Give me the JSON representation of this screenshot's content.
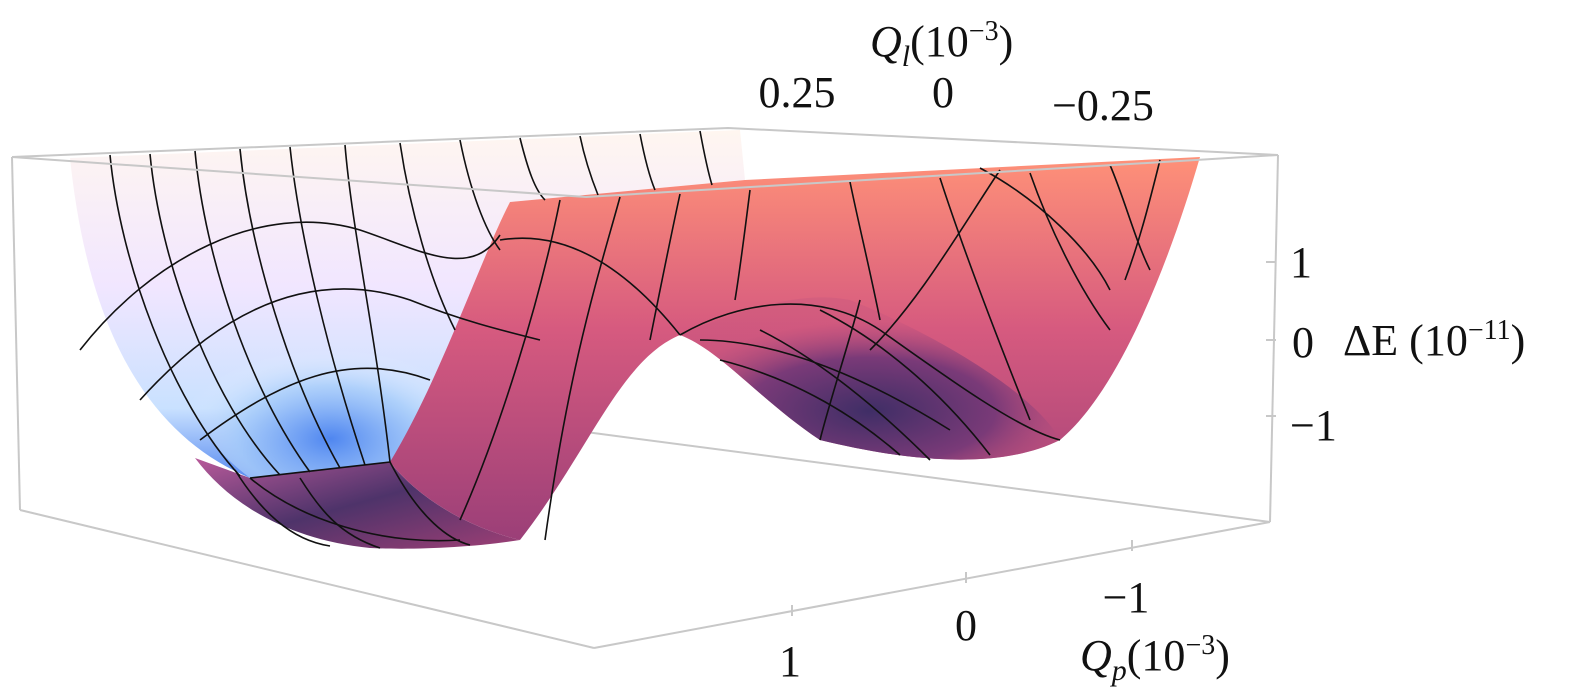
{
  "chart_data": {
    "type": "surface3d",
    "title": "",
    "description_of_surface": "double-well potential: two minima at Qp = ±1, saddle at Qp = 0, parabolic along Ql",
    "axes": {
      "x": {
        "label": "Qp",
        "unit_label": "(10",
        "unit_exp": "−3",
        "unit_close": ")",
        "ticks": [
          "1",
          "0",
          "−1"
        ],
        "tick_values": [
          1,
          0,
          -1
        ],
        "range": [
          -1.6,
          1.6
        ]
      },
      "y": {
        "label": "Ql",
        "unit_label": "(10",
        "unit_exp": "−3",
        "unit_close": ")",
        "ticks": [
          "0.25",
          "0",
          "−0.25"
        ],
        "tick_values": [
          0.25,
          0,
          -0.25
        ],
        "range": [
          -0.45,
          0.45
        ]
      },
      "z": {
        "label": "ΔE (10",
        "unit_exp": "−11",
        "unit_close": ")",
        "ticks": [
          "1",
          "0",
          "−1"
        ],
        "tick_values": [
          1,
          0,
          -1
        ],
        "range": [
          -1.5,
          1.7
        ]
      }
    },
    "model": {
      "form": "dE = a*(Qp^2-1)^2 - b + c*Ql^2",
      "a": 1.0,
      "b": 1.0,
      "c": 11.0
    },
    "grid": false,
    "box": true,
    "colormap": "sunset-pastel",
    "colors": {
      "box": "#c8c8c8",
      "mesh": "#111111",
      "low": "#3d2f66",
      "mid": "#c34e7e",
      "high": "#ff9a7a",
      "light": "#f3e7ff",
      "cool": "#5d8ff0"
    }
  }
}
